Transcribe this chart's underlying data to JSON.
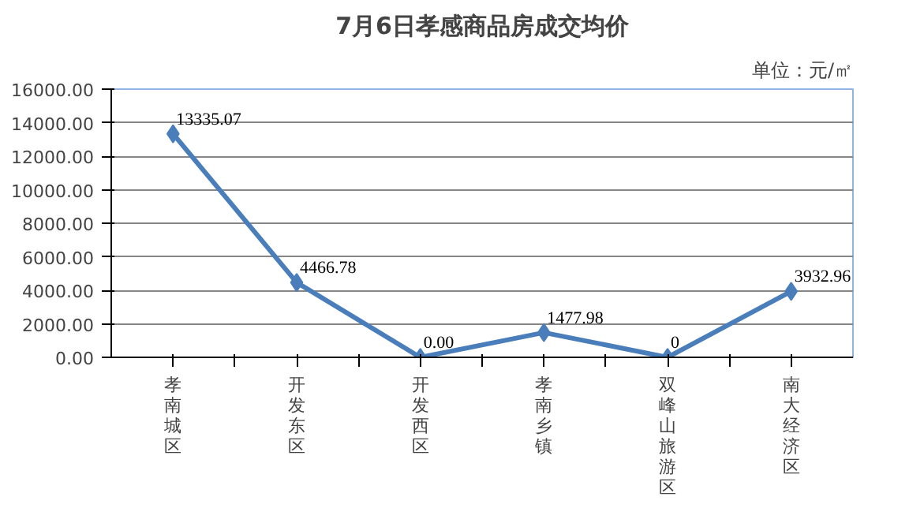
{
  "chart_data": {
    "type": "line",
    "title": "7月6日孝感商品房成交均价",
    "annotations": [
      "单位：元/㎡"
    ],
    "categories": [
      "孝南城区",
      "开发东区",
      "开发西区",
      "孝南乡镇",
      "双峰山旅游区",
      "南大经济区"
    ],
    "series": [
      {
        "color": "#4a7ebb",
        "values": [
          13335.07,
          4466.78,
          0,
          1477.98,
          0,
          3932.96
        ],
        "value_labels": [
          "13335.07",
          "4466.78",
          "0.00",
          "1477.98",
          "0",
          "3932.96"
        ]
      }
    ],
    "ylim": [
      0,
      16000
    ],
    "yticks": [
      {
        "value": 0,
        "label": "0.00"
      },
      {
        "value": 2000,
        "label": "2000.00"
      },
      {
        "value": 4000,
        "label": "4000.00"
      },
      {
        "value": 6000,
        "label": "6000.00"
      },
      {
        "value": 8000,
        "label": "8000.00"
      },
      {
        "value": 10000,
        "label": "10000.00"
      },
      {
        "value": 12000,
        "label": "12000.00"
      },
      {
        "value": 14000,
        "label": "14000.00"
      },
      {
        "value": 16000,
        "label": "16000.00"
      }
    ],
    "grid": "y",
    "marker": "diamond",
    "line_style": "solid"
  }
}
